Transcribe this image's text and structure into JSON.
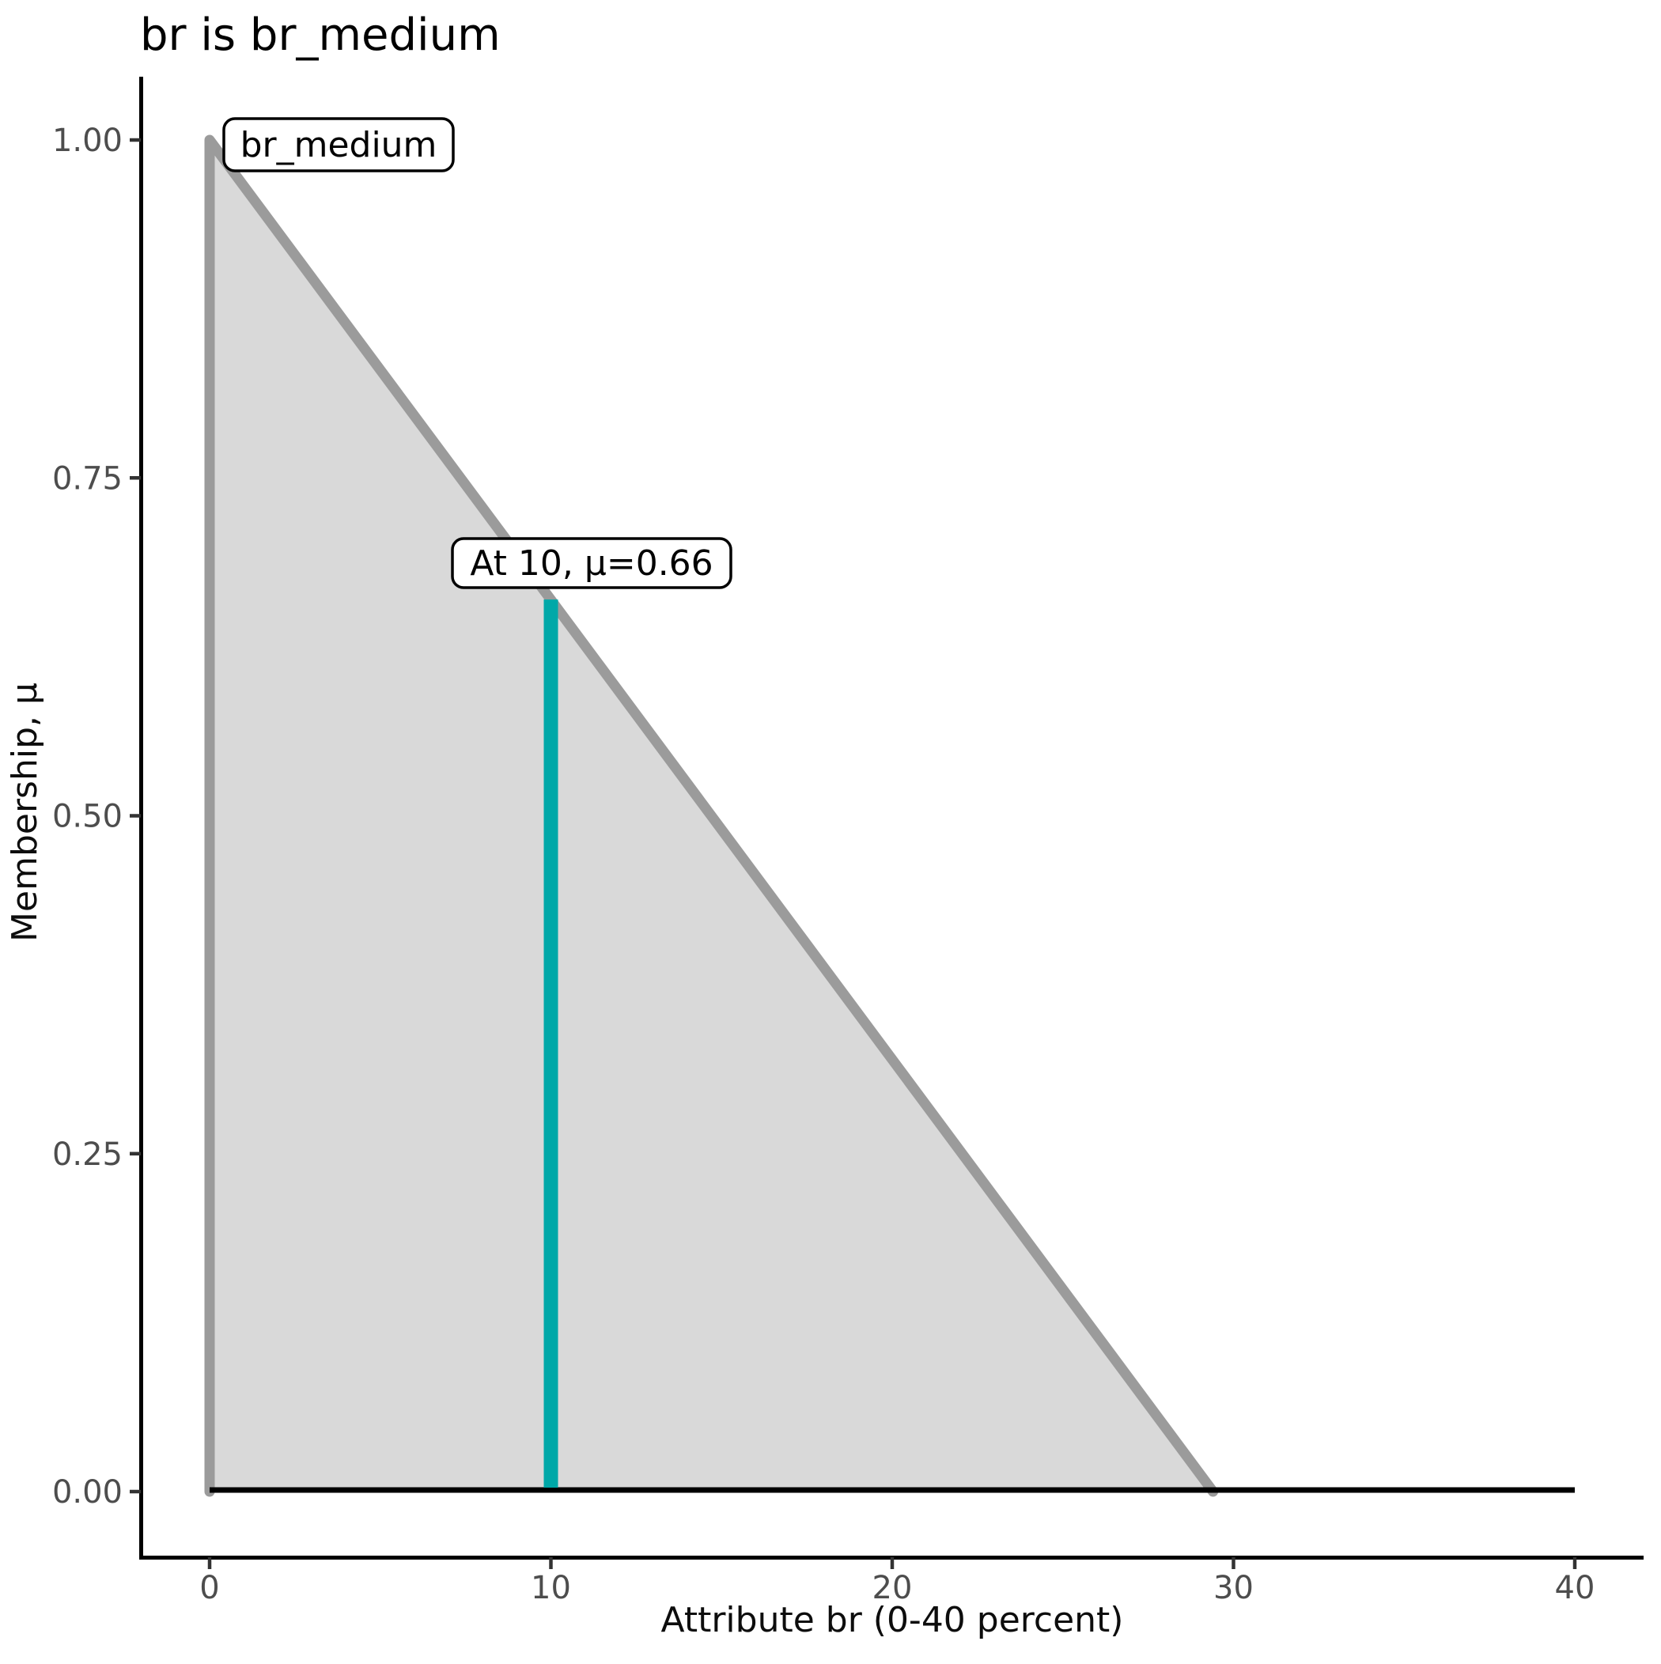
{
  "page": {
    "title": "br is br_medium"
  },
  "chart_data": {
    "type": "area",
    "title": "br is br_medium",
    "xlabel": "Attribute br (0-40 percent)",
    "ylabel": "Membership, μ",
    "xlim": [
      0,
      40
    ],
    "ylim": [
      0,
      1
    ],
    "xticks": [
      "0",
      "10",
      "20",
      "30",
      "40"
    ],
    "yticks": [
      "0.00",
      "0.25",
      "0.50",
      "0.75",
      "1.00"
    ],
    "grid": false,
    "legend": "none",
    "series": [
      {
        "name": "br_medium",
        "shape": "triangular-membership-function",
        "x": [
          0,
          0,
          29.4
        ],
        "mu": [
          0,
          1,
          0
        ],
        "fill_color": "#D9D9D9",
        "line_color": "#9B9B9B"
      }
    ],
    "baseline": {
      "mu": 0,
      "x_range": [
        0,
        40
      ],
      "color": "#000000"
    },
    "highlight": {
      "x": 10,
      "mu": 0.66,
      "color": "#00A8A8"
    },
    "annotations": [
      {
        "text": "br_medium",
        "marks": "membership function peak",
        "at_x": 0,
        "at_mu": 1.0
      },
      {
        "text": "At 10, μ=0.66",
        "marks": "membership value at x=10",
        "at_x": 10,
        "at_mu": 0.66
      }
    ],
    "colors": {
      "tick_label": "#4D4D4D",
      "axis_line": "#000000",
      "tick_mark": "#333333",
      "title_text": "#000000",
      "annotation_box_fill": "#FFFFFF",
      "annotation_box_border": "#000000"
    }
  }
}
